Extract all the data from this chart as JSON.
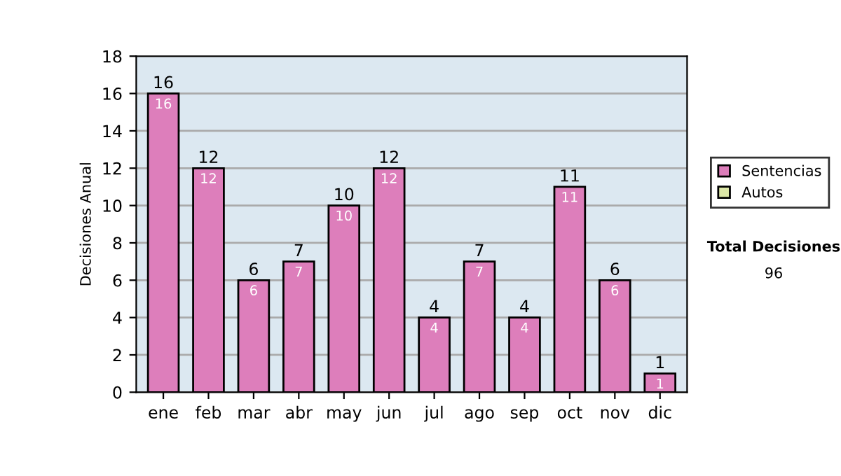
{
  "chart_data": {
    "type": "bar",
    "stacked": true,
    "ylabel": "Decisiones Anual",
    "categories": [
      "ene",
      "feb",
      "mar",
      "abr",
      "may",
      "jun",
      "jul",
      "ago",
      "sep",
      "oct",
      "nov",
      "dic"
    ],
    "series": [
      {
        "name": "Sentencias",
        "color": "#dd7ebb",
        "values": [
          16,
          12,
          6,
          7,
          10,
          12,
          4,
          7,
          4,
          11,
          6,
          1
        ],
        "value_labels": [
          "16",
          "12",
          "6",
          "7",
          "10",
          "12",
          "4",
          "7",
          "4",
          "11",
          "6",
          "1"
        ]
      },
      {
        "name": "Autos",
        "color": "#dde8a8",
        "values": [
          null,
          null,
          null,
          null,
          null,
          null,
          null,
          null,
          null,
          null,
          null,
          null
        ]
      }
    ],
    "totals": [
      "16",
      "12",
      "6",
      "7",
      "10",
      "12",
      "4",
      "7",
      "4",
      "11",
      "6",
      "1"
    ],
    "ylim": [
      0,
      18
    ],
    "yticks": [
      0,
      2,
      4,
      6,
      8,
      10,
      12,
      14,
      16,
      18
    ],
    "grid": "y",
    "legend": "right",
    "annotations": [
      "Total Decisiones",
      "96"
    ]
  }
}
